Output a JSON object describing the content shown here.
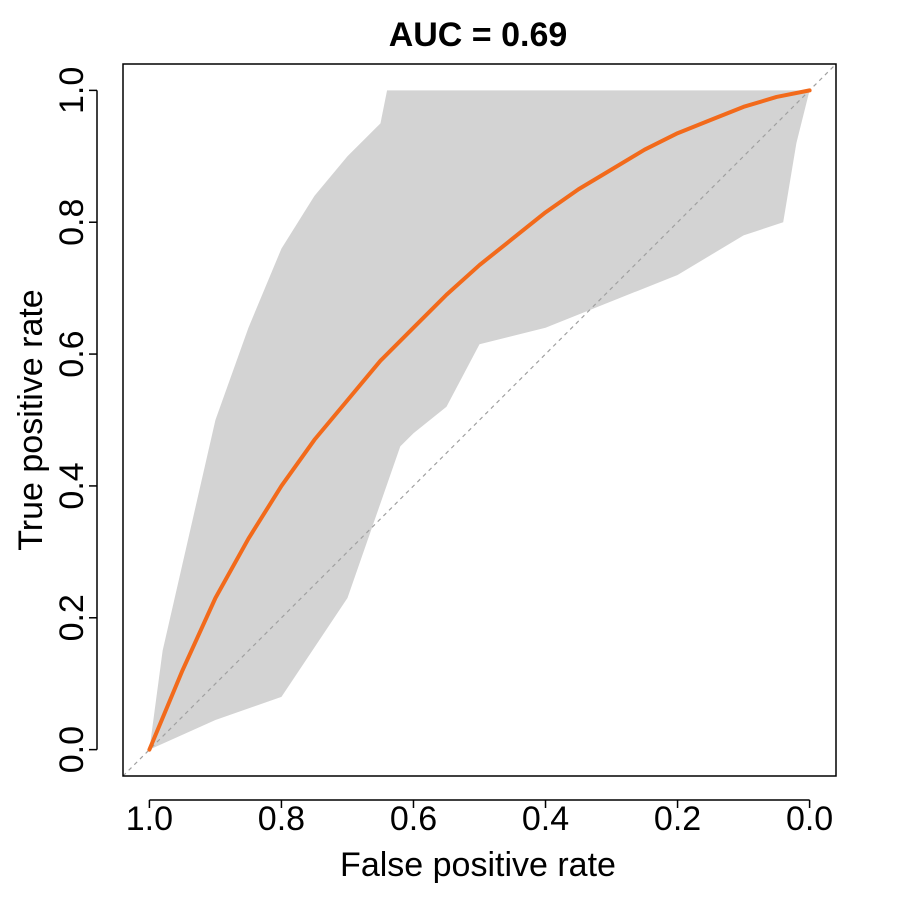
{
  "chart_data": {
    "type": "line",
    "title": "AUC = 0.69",
    "xlabel": "False positive rate",
    "ylabel": "True positive rate",
    "x_reversed": true,
    "xlim": [
      1.04,
      -0.04
    ],
    "ylim": [
      -0.04,
      1.04
    ],
    "x_ticks": [
      1.0,
      0.8,
      0.6,
      0.4,
      0.2,
      0.0
    ],
    "x_tick_labels": [
      "1.0",
      "0.8",
      "0.6",
      "0.4",
      "0.2",
      "0.0"
    ],
    "y_ticks": [
      0.0,
      0.2,
      0.4,
      0.6,
      0.8,
      1.0
    ],
    "y_tick_labels": [
      "0.0",
      "0.2",
      "0.4",
      "0.6",
      "0.8",
      "1.0"
    ],
    "grid": false,
    "legend": "none",
    "colors": {
      "curve": "#f26a1b",
      "band": "#d3d3d3",
      "diagonal": "#a0a0a0"
    },
    "series": [
      {
        "kind": "curve",
        "x": [
          1.0,
          0.95,
          0.9,
          0.85,
          0.8,
          0.75,
          0.7,
          0.65,
          0.6,
          0.55,
          0.5,
          0.45,
          0.4,
          0.35,
          0.3,
          0.25,
          0.2,
          0.15,
          0.1,
          0.05,
          0.0
        ],
        "y": [
          0.0,
          0.12,
          0.23,
          0.32,
          0.4,
          0.47,
          0.53,
          0.59,
          0.64,
          0.69,
          0.735,
          0.775,
          0.815,
          0.85,
          0.88,
          0.91,
          0.935,
          0.955,
          0.975,
          0.99,
          1.0
        ]
      },
      {
        "kind": "confidence-band",
        "upper": [
          [
            1.0,
            0.0
          ],
          [
            0.98,
            0.15
          ],
          [
            0.9,
            0.5
          ],
          [
            0.85,
            0.64
          ],
          [
            0.8,
            0.76
          ],
          [
            0.75,
            0.84
          ],
          [
            0.7,
            0.9
          ],
          [
            0.65,
            0.95
          ],
          [
            0.64,
            1.0
          ],
          [
            0.0,
            1.0
          ]
        ],
        "lower": [
          [
            0.0,
            1.0
          ],
          [
            0.02,
            0.92
          ],
          [
            0.04,
            0.8
          ],
          [
            0.1,
            0.78
          ],
          [
            0.2,
            0.72
          ],
          [
            0.4,
            0.64
          ],
          [
            0.5,
            0.615
          ],
          [
            0.55,
            0.52
          ],
          [
            0.6,
            0.48
          ],
          [
            0.62,
            0.46
          ],
          [
            0.7,
            0.23
          ],
          [
            0.8,
            0.08
          ],
          [
            0.9,
            0.045
          ],
          [
            1.0,
            0.0
          ]
        ]
      },
      {
        "kind": "reference-diagonal",
        "x": [
          1.04,
          -0.04
        ],
        "y": [
          -0.04,
          1.04
        ]
      }
    ]
  }
}
